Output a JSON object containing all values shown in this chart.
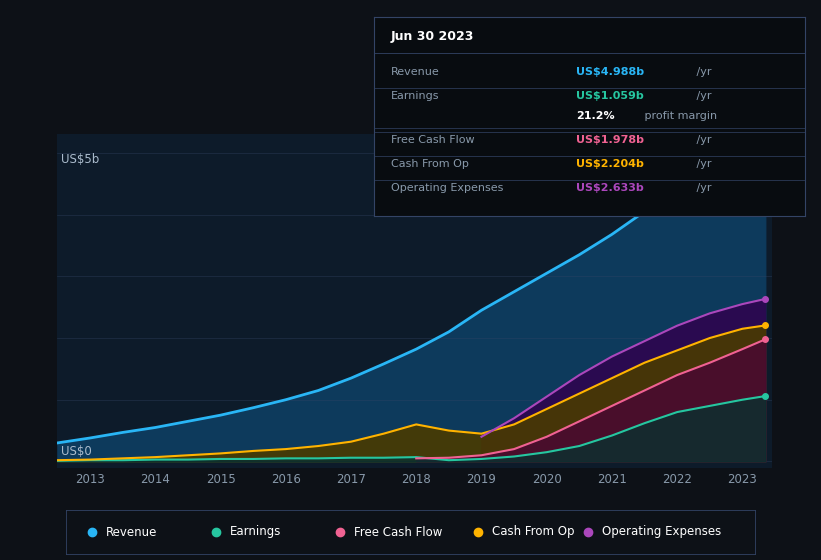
{
  "bg_color": "#0d1117",
  "plot_bg_color": "#0d1b2a",
  "ylabel_top": "US$5b",
  "ylabel_bottom": "US$0",
  "years": [
    2012.5,
    2013,
    2013.5,
    2014,
    2014.5,
    2015,
    2015.5,
    2016,
    2016.5,
    2017,
    2017.5,
    2018,
    2018.5,
    2019,
    2019.5,
    2020,
    2020.5,
    2021,
    2021.5,
    2022,
    2022.5,
    2023,
    2023.35
  ],
  "revenue": [
    0.3,
    0.38,
    0.47,
    0.55,
    0.65,
    0.75,
    0.87,
    1.0,
    1.15,
    1.35,
    1.58,
    1.82,
    2.1,
    2.45,
    2.75,
    3.05,
    3.35,
    3.68,
    4.05,
    4.4,
    4.7,
    4.85,
    4.988
  ],
  "earnings": [
    0.01,
    0.02,
    0.02,
    0.03,
    0.03,
    0.04,
    0.04,
    0.05,
    0.05,
    0.06,
    0.06,
    0.07,
    0.02,
    0.04,
    0.08,
    0.15,
    0.25,
    0.42,
    0.62,
    0.8,
    0.9,
    1.0,
    1.059
  ],
  "free_cash_flow": [
    null,
    null,
    null,
    null,
    null,
    null,
    null,
    null,
    null,
    null,
    null,
    0.05,
    0.06,
    0.1,
    0.2,
    0.4,
    0.65,
    0.9,
    1.15,
    1.4,
    1.6,
    1.82,
    1.978
  ],
  "cash_from_op": [
    0.02,
    0.03,
    0.05,
    0.07,
    0.1,
    0.13,
    0.17,
    0.2,
    0.25,
    0.32,
    0.45,
    0.6,
    0.5,
    0.45,
    0.6,
    0.85,
    1.1,
    1.35,
    1.6,
    1.8,
    2.0,
    2.15,
    2.204
  ],
  "op_expenses": [
    null,
    null,
    null,
    null,
    null,
    null,
    null,
    null,
    null,
    null,
    null,
    null,
    null,
    0.4,
    0.7,
    1.05,
    1.4,
    1.7,
    1.95,
    2.2,
    2.4,
    2.55,
    2.633
  ],
  "revenue_color": "#29b6f6",
  "earnings_color": "#26c6a0",
  "fcf_color": "#f06292",
  "cashop_color": "#ffb300",
  "opex_color": "#ab47bc",
  "revenue_fill": "#0d3a5c",
  "earnings_fill": "#0a3030",
  "fcf_fill": "#4a0a30",
  "cashop_fill": "#4a3a00",
  "opex_fill": "#2a0a50",
  "x_ticks": [
    2013,
    2014,
    2015,
    2016,
    2017,
    2018,
    2019,
    2020,
    2021,
    2022,
    2023
  ],
  "box_title": "Jun 30 2023",
  "box_row_labels": [
    "Revenue",
    "Earnings",
    "",
    "Free Cash Flow",
    "Cash From Op",
    "Operating Expenses"
  ],
  "box_value_colored": [
    "US$4.988b",
    "US$1.059b",
    "21.2%",
    "US$1.978b",
    "US$2.204b",
    "US$2.633b"
  ],
  "box_value_suffix": [
    " /yr",
    " /yr",
    " profit margin",
    " /yr",
    " /yr",
    " /yr"
  ],
  "box_value_colors": [
    "#29b6f6",
    "#26c6a0",
    "#ffffff",
    "#f06292",
    "#ffb300",
    "#ab47bc"
  ],
  "legend_labels": [
    "Revenue",
    "Earnings",
    "Free Cash Flow",
    "Cash From Op",
    "Operating Expenses"
  ],
  "legend_colors": [
    "#29b6f6",
    "#26c6a0",
    "#f06292",
    "#ffb300",
    "#ab47bc"
  ]
}
